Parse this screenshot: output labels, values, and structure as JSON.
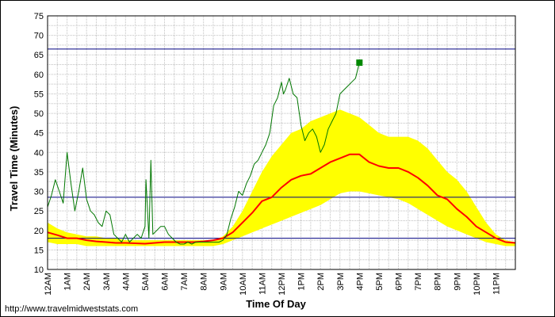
{
  "footer_url": "http://www.travelmidweststats.com",
  "chart_data": {
    "type": "line",
    "title": "",
    "xlabel": "Time Of Day",
    "ylabel": "Travel Time (Minutes)",
    "ylim": [
      10,
      75
    ],
    "yticks": [
      10,
      15,
      20,
      25,
      30,
      35,
      40,
      45,
      50,
      55,
      60,
      65,
      70,
      75
    ],
    "xlim": [
      0,
      24
    ],
    "xticks": [
      {
        "x": 0,
        "label": "12AM"
      },
      {
        "x": 1,
        "label": "1AM"
      },
      {
        "x": 2,
        "label": "2AM"
      },
      {
        "x": 3,
        "label": "3AM"
      },
      {
        "x": 4,
        "label": "4AM"
      },
      {
        "x": 5,
        "label": "5AM"
      },
      {
        "x": 6,
        "label": "6AM"
      },
      {
        "x": 7,
        "label": "7AM"
      },
      {
        "x": 8,
        "label": "8AM"
      },
      {
        "x": 9,
        "label": "9AM"
      },
      {
        "x": 10,
        "label": "10AM"
      },
      {
        "x": 11,
        "label": "11AM"
      },
      {
        "x": 12,
        "label": "12PM"
      },
      {
        "x": 13,
        "label": "1PM"
      },
      {
        "x": 14,
        "label": "2PM"
      },
      {
        "x": 15,
        "label": "3PM"
      },
      {
        "x": 16,
        "label": "4PM"
      },
      {
        "x": 17,
        "label": "5PM"
      },
      {
        "x": 18,
        "label": "6PM"
      },
      {
        "x": 19,
        "label": "7PM"
      },
      {
        "x": 20,
        "label": "8PM"
      },
      {
        "x": 21,
        "label": "9PM"
      },
      {
        "x": 22,
        "label": "10PM"
      },
      {
        "x": 23,
        "label": "11PM"
      }
    ],
    "grid": true,
    "colors": {
      "band": "#ffff00",
      "average": "#ff0000",
      "today": "#007700",
      "reference": "#000080",
      "marker": "#008800"
    },
    "reference_lines": [
      66.5,
      28.5,
      18.0
    ],
    "band": {
      "x": [
        0,
        0.5,
        1,
        1.5,
        2,
        2.5,
        3,
        3.5,
        4,
        4.5,
        5,
        5.5,
        6,
        6.5,
        7,
        7.5,
        8,
        8.5,
        9,
        9.5,
        10,
        10.5,
        11,
        11.5,
        12,
        12.5,
        13,
        13.5,
        14,
        14.5,
        15,
        15.5,
        16,
        16.5,
        17,
        17.5,
        18,
        18.5,
        19,
        19.5,
        20,
        20.5,
        21,
        21.5,
        22,
        22.5,
        23,
        23.5,
        24
      ],
      "upper": [
        22,
        20.5,
        19.5,
        19,
        18.5,
        18.5,
        18,
        18,
        17.5,
        17.5,
        17.5,
        17.5,
        17.5,
        17.5,
        17.5,
        17.5,
        17.5,
        17.5,
        18.5,
        21,
        25,
        30,
        35,
        39,
        42,
        45,
        46,
        48,
        49,
        50,
        51,
        50,
        49,
        47,
        45,
        44,
        44,
        44,
        43,
        41,
        38,
        35,
        33,
        30,
        26,
        22,
        19,
        17.5,
        17
      ],
      "lower": [
        17,
        16.5,
        16.5,
        16.5,
        16,
        16,
        16,
        16,
        16,
        16,
        16,
        16,
        16,
        16,
        16,
        16,
        16,
        16,
        16.5,
        17.5,
        18.5,
        19.5,
        20.5,
        21.5,
        22.5,
        23.5,
        24.5,
        25.5,
        26.5,
        28,
        29.5,
        30,
        30,
        29.5,
        29,
        28.5,
        28,
        27,
        25.5,
        24,
        22.5,
        21,
        20,
        19,
        18,
        17,
        16.5,
        16,
        16
      ]
    },
    "series": [
      {
        "name": "",
        "role": "average",
        "x": [
          0,
          0.5,
          1,
          1.5,
          2,
          2.5,
          3,
          3.5,
          4,
          4.5,
          5,
          5.5,
          6,
          6.5,
          7,
          7.5,
          8,
          8.5,
          9,
          9.5,
          10,
          10.5,
          11,
          11.5,
          12,
          12.5,
          13,
          13.5,
          14,
          14.5,
          15,
          15.5,
          16,
          16.5,
          17,
          17.5,
          18,
          18.5,
          19,
          19.5,
          20,
          20.5,
          21,
          21.5,
          22,
          22.5,
          23,
          23.5,
          24
        ],
        "values": [
          19.5,
          18.8,
          18,
          18,
          17.5,
          17.2,
          17,
          16.8,
          16.8,
          16.7,
          16.6,
          16.8,
          17,
          17,
          17,
          17,
          17.2,
          17.5,
          18,
          19.5,
          22,
          24.5,
          27.5,
          28.5,
          31,
          33,
          34,
          34.5,
          36,
          37.5,
          38.5,
          39.5,
          39.5,
          37.5,
          36.5,
          36,
          36,
          35,
          33.5,
          31.5,
          29,
          28,
          25.5,
          23.5,
          21,
          19.5,
          18,
          17,
          16.8
        ]
      },
      {
        "name": "",
        "role": "today",
        "x": [
          0,
          0.2,
          0.4,
          0.6,
          0.8,
          1.0,
          1.2,
          1.4,
          1.6,
          1.8,
          2.0,
          2.2,
          2.4,
          2.6,
          2.8,
          3.0,
          3.2,
          3.4,
          3.6,
          3.8,
          4.0,
          4.2,
          4.4,
          4.6,
          4.8,
          5.0,
          5.05,
          5.2,
          5.3,
          5.4,
          5.6,
          5.8,
          6.0,
          6.2,
          6.4,
          6.6,
          6.8,
          7.0,
          7.2,
          7.4,
          7.6,
          7.8,
          8.0,
          8.2,
          8.4,
          8.6,
          8.8,
          9.0,
          9.2,
          9.4,
          9.6,
          9.8,
          10.0,
          10.2,
          10.4,
          10.6,
          10.8,
          11.0,
          11.2,
          11.4,
          11.6,
          11.8,
          12.0,
          12.1,
          12.2,
          12.4,
          12.6,
          12.8,
          13.0,
          13.2,
          13.4,
          13.6,
          13.8,
          14.0,
          14.2,
          14.4,
          14.6,
          14.8,
          15.0,
          15.2,
          15.4,
          15.6,
          15.8,
          16.0
        ],
        "values": [
          26,
          29,
          33,
          30,
          27,
          40,
          32,
          25,
          30,
          36,
          28,
          25,
          24,
          22,
          21,
          25,
          24,
          19,
          18,
          17,
          19,
          17,
          18,
          19,
          18,
          21,
          33,
          18,
          38,
          19,
          20,
          21,
          21,
          19,
          18,
          17,
          16.5,
          16.5,
          17,
          16.5,
          17,
          17,
          17,
          17,
          17,
          17,
          17,
          17.5,
          19,
          23,
          26,
          30,
          29,
          32,
          34,
          37,
          38,
          40,
          42,
          45,
          52,
          54,
          58,
          55,
          56,
          59,
          55,
          54,
          47,
          43,
          45,
          46,
          44,
          40,
          42,
          46,
          48,
          50,
          55,
          56,
          57,
          58,
          59,
          63
        ]
      }
    ],
    "marker_point": {
      "x": 16.0,
      "y": 63
    },
    "footer": "http://www.travelmidweststats.com"
  }
}
